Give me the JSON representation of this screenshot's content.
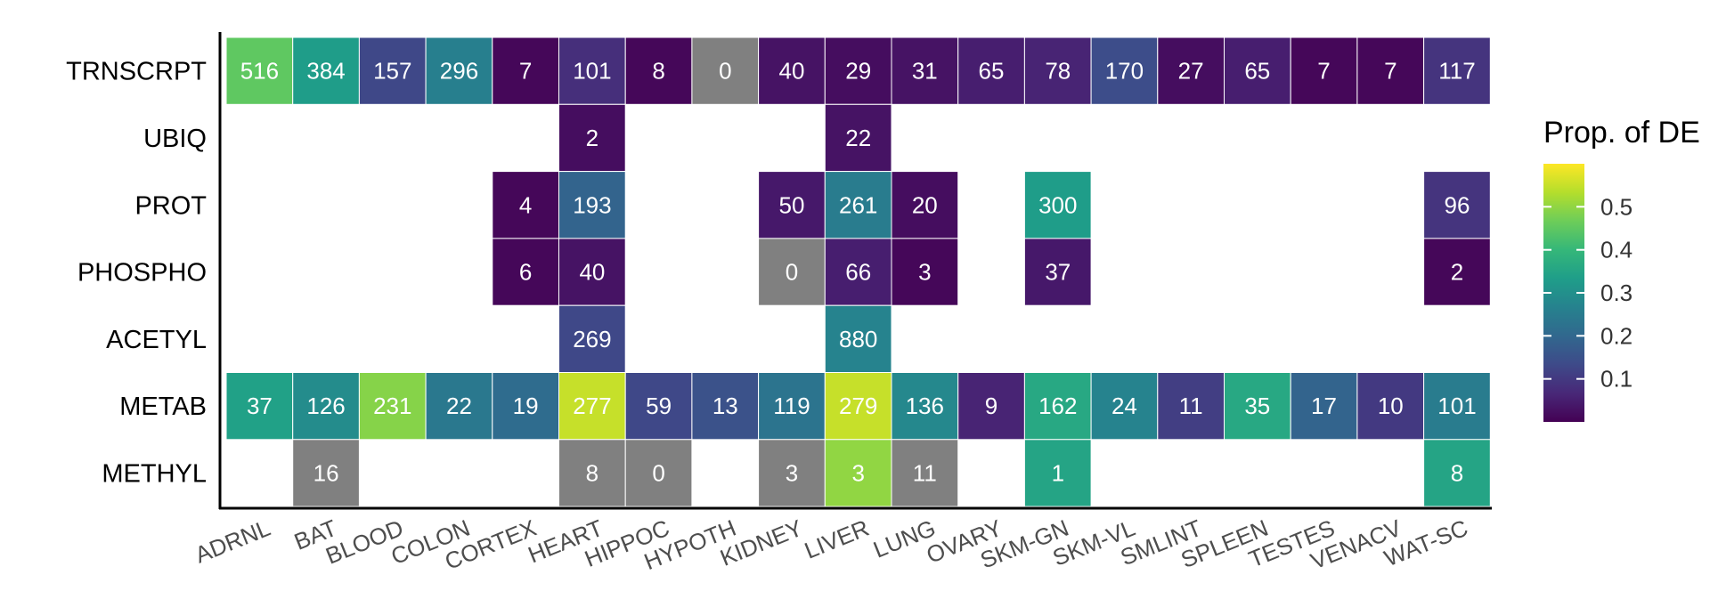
{
  "chart_data": {
    "type": "heatmap",
    "rows": [
      "TRNSCRPT",
      "UBIQ",
      "PROT",
      "PHOSPHO",
      "ACETYL",
      "METAB",
      "METHYL"
    ],
    "columns": [
      "ADRNL",
      "BAT",
      "BLOOD",
      "COLON",
      "CORTEX",
      "HEART",
      "HIPPOC",
      "HYPOTH",
      "KIDNEY",
      "LIVER",
      "LUNG",
      "OVARY",
      "SKM-GN",
      "SKM-VL",
      "SMLINT",
      "SPLEEN",
      "TESTES",
      "VENACV",
      "WAT-SC"
    ],
    "cells": [
      {
        "row": "TRNSCRPT",
        "col": "ADRNL",
        "label": "516",
        "prop": 0.45
      },
      {
        "row": "TRNSCRPT",
        "col": "BAT",
        "label": "384",
        "prop": 0.33
      },
      {
        "row": "TRNSCRPT",
        "col": "BLOOD",
        "label": "157",
        "prop": 0.13
      },
      {
        "row": "TRNSCRPT",
        "col": "COLON",
        "label": "296",
        "prop": 0.26
      },
      {
        "row": "TRNSCRPT",
        "col": "CORTEX",
        "label": "7",
        "prop": 0.01
      },
      {
        "row": "TRNSCRPT",
        "col": "HEART",
        "label": "101",
        "prop": 0.08
      },
      {
        "row": "TRNSCRPT",
        "col": "HIPPOC",
        "label": "8",
        "prop": 0.01
      },
      {
        "row": "TRNSCRPT",
        "col": "HYPOTH",
        "label": "0",
        "prop": null
      },
      {
        "row": "TRNSCRPT",
        "col": "KIDNEY",
        "label": "40",
        "prop": 0.03
      },
      {
        "row": "TRNSCRPT",
        "col": "LIVER",
        "label": "29",
        "prop": 0.02
      },
      {
        "row": "TRNSCRPT",
        "col": "LUNG",
        "label": "31",
        "prop": 0.03
      },
      {
        "row": "TRNSCRPT",
        "col": "OVARY",
        "label": "65",
        "prop": 0.05
      },
      {
        "row": "TRNSCRPT",
        "col": "SKM-GN",
        "label": "78",
        "prop": 0.06
      },
      {
        "row": "TRNSCRPT",
        "col": "SKM-VL",
        "label": "170",
        "prop": 0.14
      },
      {
        "row": "TRNSCRPT",
        "col": "SMLINT",
        "label": "27",
        "prop": 0.02
      },
      {
        "row": "TRNSCRPT",
        "col": "SPLEEN",
        "label": "65",
        "prop": 0.05
      },
      {
        "row": "TRNSCRPT",
        "col": "TESTES",
        "label": "7",
        "prop": 0.01
      },
      {
        "row": "TRNSCRPT",
        "col": "VENACV",
        "label": "7",
        "prop": 0.01
      },
      {
        "row": "TRNSCRPT",
        "col": "WAT-SC",
        "label": "117",
        "prop": 0.09
      },
      {
        "row": "UBIQ",
        "col": "HEART",
        "label": "2",
        "prop": 0.02
      },
      {
        "row": "UBIQ",
        "col": "LIVER",
        "label": "22",
        "prop": 0.03
      },
      {
        "row": "PROT",
        "col": "CORTEX",
        "label": "4",
        "prop": 0.01
      },
      {
        "row": "PROT",
        "col": "HEART",
        "label": "193",
        "prop": 0.19
      },
      {
        "row": "PROT",
        "col": "KIDNEY",
        "label": "50",
        "prop": 0.04
      },
      {
        "row": "PROT",
        "col": "LIVER",
        "label": "261",
        "prop": 0.25
      },
      {
        "row": "PROT",
        "col": "LUNG",
        "label": "20",
        "prop": 0.02
      },
      {
        "row": "PROT",
        "col": "SKM-GN",
        "label": "300",
        "prop": 0.33
      },
      {
        "row": "PROT",
        "col": "WAT-SC",
        "label": "96",
        "prop": 0.09
      },
      {
        "row": "PHOSPHO",
        "col": "CORTEX",
        "label": "6",
        "prop": 0.01
      },
      {
        "row": "PHOSPHO",
        "col": "HEART",
        "label": "40",
        "prop": 0.03
      },
      {
        "row": "PHOSPHO",
        "col": "KIDNEY",
        "label": "0",
        "prop": null
      },
      {
        "row": "PHOSPHO",
        "col": "LIVER",
        "label": "66",
        "prop": 0.05
      },
      {
        "row": "PHOSPHO",
        "col": "LUNG",
        "label": "3",
        "prop": 0.01
      },
      {
        "row": "PHOSPHO",
        "col": "SKM-GN",
        "label": "37",
        "prop": 0.04
      },
      {
        "row": "PHOSPHO",
        "col": "WAT-SC",
        "label": "2",
        "prop": 0.01
      },
      {
        "row": "ACETYL",
        "col": "HEART",
        "label": "269",
        "prop": 0.13
      },
      {
        "row": "ACETYL",
        "col": "LIVER",
        "label": "880",
        "prop": 0.27
      },
      {
        "row": "METAB",
        "col": "ADRNL",
        "label": "37",
        "prop": 0.34
      },
      {
        "row": "METAB",
        "col": "BAT",
        "label": "126",
        "prop": 0.29
      },
      {
        "row": "METAB",
        "col": "BLOOD",
        "label": "231",
        "prop": 0.49
      },
      {
        "row": "METAB",
        "col": "COLON",
        "label": "22",
        "prop": 0.24
      },
      {
        "row": "METAB",
        "col": "CORTEX",
        "label": "19",
        "prop": 0.21
      },
      {
        "row": "METAB",
        "col": "HEART",
        "label": "277",
        "prop": 0.55
      },
      {
        "row": "METAB",
        "col": "HIPPOC",
        "label": "59",
        "prop": 0.13
      },
      {
        "row": "METAB",
        "col": "HYPOTH",
        "label": "13",
        "prop": 0.15
      },
      {
        "row": "METAB",
        "col": "KIDNEY",
        "label": "119",
        "prop": 0.23
      },
      {
        "row": "METAB",
        "col": "LIVER",
        "label": "279",
        "prop": 0.55
      },
      {
        "row": "METAB",
        "col": "LUNG",
        "label": "136",
        "prop": 0.28
      },
      {
        "row": "METAB",
        "col": "OVARY",
        "label": "9",
        "prop": 0.06
      },
      {
        "row": "METAB",
        "col": "SKM-GN",
        "label": "162",
        "prop": 0.36
      },
      {
        "row": "METAB",
        "col": "SKM-VL",
        "label": "24",
        "prop": 0.27
      },
      {
        "row": "METAB",
        "col": "SMLINT",
        "label": "11",
        "prop": 0.11
      },
      {
        "row": "METAB",
        "col": "SPLEEN",
        "label": "35",
        "prop": 0.36
      },
      {
        "row": "METAB",
        "col": "TESTES",
        "label": "17",
        "prop": 0.19
      },
      {
        "row": "METAB",
        "col": "VENACV",
        "label": "10",
        "prop": 0.1
      },
      {
        "row": "METAB",
        "col": "WAT-SC",
        "label": "101",
        "prop": 0.25
      },
      {
        "row": "METHYL",
        "col": "BAT",
        "label": "16",
        "prop": null
      },
      {
        "row": "METHYL",
        "col": "HEART",
        "label": "8",
        "prop": null
      },
      {
        "row": "METHYL",
        "col": "HIPPOC",
        "label": "0",
        "prop": null
      },
      {
        "row": "METHYL",
        "col": "KIDNEY",
        "label": "3",
        "prop": null
      },
      {
        "row": "METHYL",
        "col": "LIVER",
        "label": "3",
        "prop": 0.5
      },
      {
        "row": "METHYL",
        "col": "LUNG",
        "label": "11",
        "prop": null
      },
      {
        "row": "METHYL",
        "col": "SKM-GN",
        "label": "1",
        "prop": 0.35
      },
      {
        "row": "METHYL",
        "col": "WAT-SC",
        "label": "8",
        "prop": 0.35
      }
    ],
    "legend": {
      "title": "Prop. of DE",
      "ticks": [
        0.1,
        0.2,
        0.3,
        0.4,
        0.5
      ],
      "tick_labels": [
        "0.1",
        "0.2",
        "0.3",
        "0.4",
        "0.5"
      ],
      "range": [
        0,
        0.6
      ],
      "placement": "right"
    },
    "colors": {
      "gradient": [
        "#440154",
        "#482878",
        "#3e4a89",
        "#31688e",
        "#26828e",
        "#1f9e89",
        "#35b779",
        "#6dcd59",
        "#b4de2c",
        "#fde725"
      ],
      "missing": "#808080"
    }
  }
}
